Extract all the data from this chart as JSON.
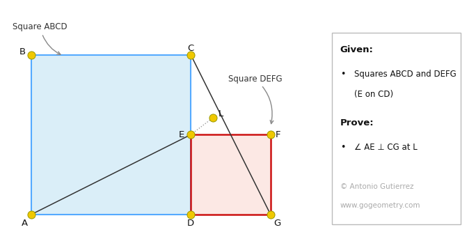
{
  "A": [
    0.0,
    0.0
  ],
  "B": [
    0.0,
    3.0
  ],
  "C": [
    3.0,
    3.0
  ],
  "D": [
    3.0,
    0.0
  ],
  "E": [
    3.0,
    1.5
  ],
  "F": [
    4.5,
    1.5
  ],
  "G": [
    4.5,
    0.0
  ],
  "L": [
    3.42,
    1.82
  ],
  "sq_abcd_fill": "#daeef8",
  "sq_abcd_edge": "#55aaff",
  "sq_defg_fill": "#fce8e4",
  "sq_defg_edge": "#cc1111",
  "dot_color": "#f0c800",
  "dot_edge": "#999900",
  "dot_size": 8,
  "line_color": "#333333",
  "dashed_color": "#999999",
  "label_abcd": "Square ABCD",
  "label_defg": "Square DEFG",
  "given_title": "Given:",
  "given_line1": "Squares ABCD and DEFG",
  "given_line2": "(E on CD)",
  "prove_title": "Prove:",
  "prove_bullet": "∠ AE ⊥ CG at L",
  "credit1": "© Antonio Gutierrez",
  "credit2": "www.gogeometry.com",
  "bg_color": "#ffffff"
}
